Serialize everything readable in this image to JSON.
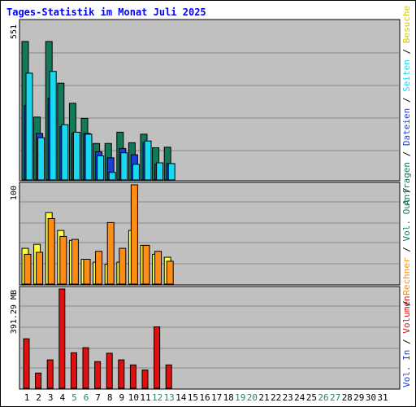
{
  "title": "Tages-Statistik im Monat Juli 2025",
  "colors": {
    "panel_bg": "#c0c0c0",
    "grid": "#888888",
    "anfragen": "#127a5a",
    "dateien": "#1a3fd9",
    "seiten": "#18d8f2",
    "besuche": "#ffff33",
    "rechner": "#ff8c14",
    "volumen": "#e01010",
    "weekend_tick": "#1f8a5a",
    "tick": "#000000"
  },
  "chart_data": [
    {
      "type": "bar",
      "categories": [
        "1",
        "2",
        "3",
        "4",
        "5",
        "6",
        "7",
        "8",
        "9",
        "10",
        "11",
        "12",
        "13",
        "14",
        "15",
        "16",
        "17",
        "18",
        "19",
        "20",
        "21",
        "22",
        "23",
        "24",
        "25",
        "26",
        "27",
        "28",
        "29",
        "30",
        "31"
      ],
      "y_max_label": "551",
      "ylim": [
        0,
        551
      ],
      "series": [
        {
          "name": "Anfragen",
          "values": [
            551,
            250,
            551,
            385,
            305,
            245,
            145,
            145,
            190,
            148,
            182,
            128,
            130,
            0,
            0,
            0,
            0,
            0,
            0,
            0,
            0,
            0,
            0,
            0,
            0,
            0,
            0,
            0,
            0,
            0,
            0
          ]
        },
        {
          "name": "Dateien",
          "values": [
            295,
            185,
            325,
            212,
            185,
            185,
            112,
            88,
            125,
            100,
            148,
            62,
            65,
            0,
            0,
            0,
            0,
            0,
            0,
            0,
            0,
            0,
            0,
            0,
            0,
            0,
            0,
            0,
            0,
            0,
            0
          ]
        },
        {
          "name": "Seiten",
          "values": [
            425,
            168,
            432,
            220,
            190,
            182,
            96,
            30,
            108,
            62,
            155,
            68,
            65,
            0,
            0,
            0,
            0,
            0,
            0,
            0,
            0,
            0,
            0,
            0,
            0,
            0,
            0,
            0,
            0,
            0,
            0
          ]
        }
      ]
    },
    {
      "type": "bar",
      "y_max_label": "100",
      "ylim": [
        0,
        100
      ],
      "series": [
        {
          "name": "Besuche",
          "values": [
            36,
            40,
            72,
            54,
            44,
            25,
            22,
            20,
            22,
            54,
            39,
            30,
            27,
            0,
            0,
            0,
            0,
            0,
            0,
            0,
            0,
            0,
            0,
            0,
            0,
            0,
            0,
            0,
            0,
            0,
            0
          ]
        },
        {
          "name": "Rechner",
          "values": [
            30,
            32,
            66,
            48,
            45,
            25,
            33,
            62,
            36,
            100,
            39,
            33,
            23,
            0,
            0,
            0,
            0,
            0,
            0,
            0,
            0,
            0,
            0,
            0,
            0,
            0,
            0,
            0,
            0,
            0,
            0
          ]
        }
      ]
    },
    {
      "type": "bar",
      "y_max_label": "391.29 MB",
      "ylim": [
        0,
        391.29
      ],
      "series": [
        {
          "name": "Volumen",
          "values": [
            195,
            60,
            112,
            391.29,
            140,
            160,
            105,
            138,
            112,
            92,
            72,
            242,
            92,
            0,
            0,
            0,
            0,
            0,
            0,
            0,
            0,
            0,
            0,
            0,
            0,
            0,
            0,
            0,
            0,
            0,
            0
          ]
        }
      ]
    }
  ],
  "legend": {
    "top": [
      {
        "text": "Anfragen",
        "color": "#127a5a"
      },
      {
        "text": " / ",
        "color": "#000000"
      },
      {
        "text": "Dateien",
        "color": "#1a3fd9"
      },
      {
        "text": " / ",
        "color": "#000000"
      },
      {
        "text": "Seiten",
        "color": "#18d8f2"
      },
      {
        "text": " / ",
        "color": "#000000"
      },
      {
        "text": "Besuche",
        "color": "#d8c800"
      }
    ],
    "mid": [
      {
        "text": " / ",
        "color": "#000000"
      },
      {
        "text": "Rechner",
        "color": "#ff8c14"
      },
      {
        "text": " / ",
        "color": "#000000"
      },
      {
        "text": "Vol. Out",
        "color": "#127a5a"
      },
      {
        "text": " / ",
        "color": "#000000"
      }
    ],
    "bottom": [
      {
        "text": "Vol. In",
        "color": "#1a3fd9"
      },
      {
        "text": " / ",
        "color": "#000000"
      },
      {
        "text": "Volumen",
        "color": "#e01010"
      }
    ]
  },
  "weekend_days": [
    5,
    6,
    12,
    13,
    19,
    20,
    26,
    27
  ]
}
